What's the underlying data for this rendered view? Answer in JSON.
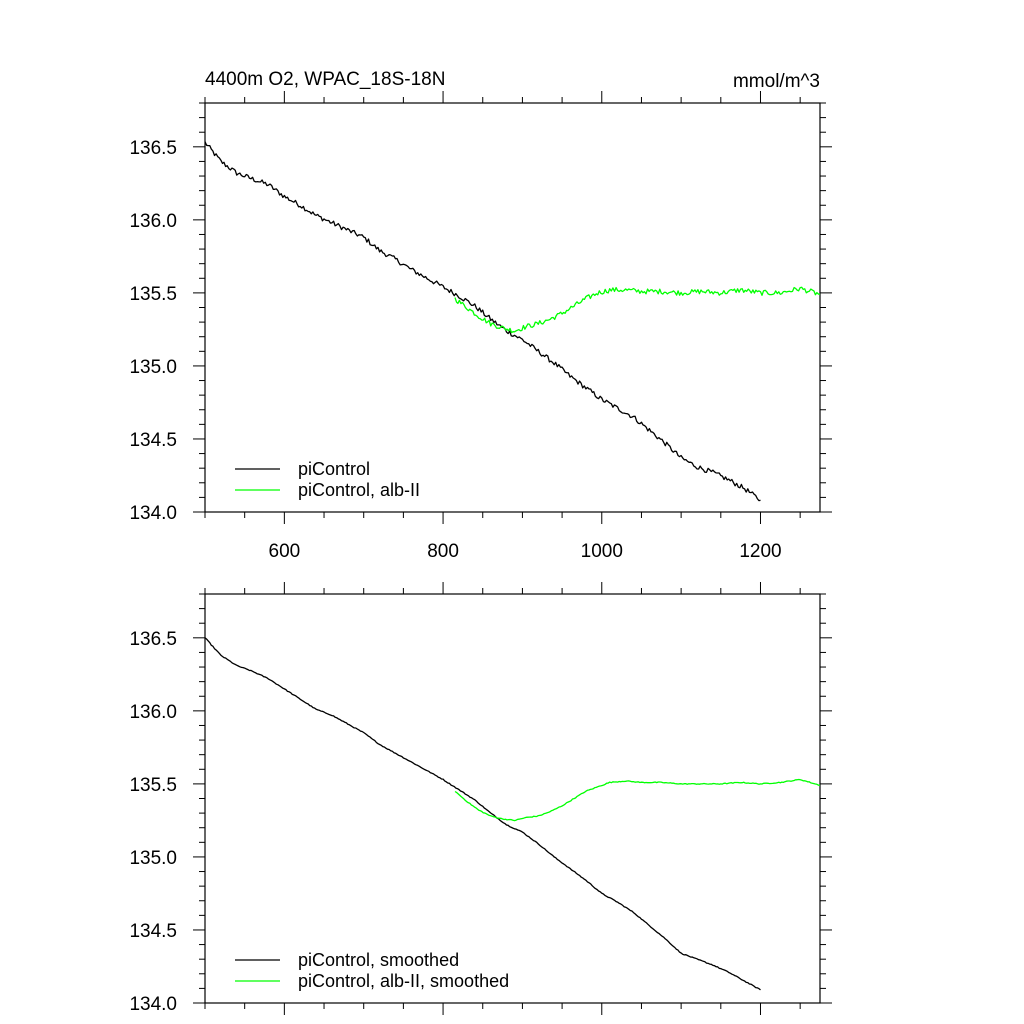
{
  "chart_data": [
    {
      "type": "line",
      "title": "4400m O2, WPAC_18S-18N",
      "units": "mmol/m^3",
      "xlim": [
        500,
        1275
      ],
      "ylim": [
        134.0,
        136.8
      ],
      "xticks": [
        600,
        800,
        1000,
        1200
      ],
      "xtick_labels": [
        "600",
        "800",
        "1000",
        "1200"
      ],
      "yticks": [
        134.0,
        134.5,
        135.0,
        135.5,
        136.0,
        136.5
      ],
      "ytick_labels": [
        "134.0",
        "134.5",
        "135.0",
        "135.5",
        "136.0",
        "136.5"
      ],
      "legend_position": "bottom-left",
      "grid": false,
      "series": [
        {
          "name": "piControl",
          "color": "#000000",
          "smoothed": false,
          "x": [
            500,
            520,
            540,
            560,
            580,
            600,
            620,
            640,
            660,
            680,
            700,
            720,
            740,
            760,
            780,
            800,
            820,
            840,
            860,
            880,
            900,
            920,
            940,
            960,
            980,
            1000,
            1020,
            1040,
            1060,
            1080,
            1100,
            1120,
            1140,
            1160,
            1180,
            1200
          ],
          "y": [
            136.53,
            136.4,
            136.32,
            136.28,
            136.24,
            136.16,
            136.1,
            136.03,
            135.98,
            135.93,
            135.88,
            135.79,
            135.73,
            135.66,
            135.6,
            135.54,
            135.48,
            135.41,
            135.32,
            135.24,
            135.18,
            135.1,
            135.02,
            134.93,
            134.85,
            134.77,
            134.71,
            134.65,
            134.56,
            134.47,
            134.37,
            134.31,
            134.27,
            134.22,
            134.16,
            134.08
          ]
        },
        {
          "name": "piControl, alb-II",
          "color": "#00ff00",
          "smoothed": false,
          "x": [
            815,
            830,
            845,
            860,
            875,
            890,
            905,
            920,
            935,
            950,
            965,
            980,
            995,
            1010,
            1030,
            1050,
            1075,
            1100,
            1125,
            1150,
            1175,
            1200,
            1225,
            1250,
            1275
          ],
          "y": [
            135.46,
            135.4,
            135.34,
            135.29,
            135.26,
            135.24,
            135.27,
            135.29,
            135.32,
            135.36,
            135.41,
            135.46,
            135.5,
            135.52,
            135.52,
            135.51,
            135.51,
            135.5,
            135.51,
            135.5,
            135.52,
            135.5,
            135.5,
            135.53,
            135.49
          ]
        }
      ]
    },
    {
      "type": "line",
      "title": "",
      "xlim": [
        500,
        1275
      ],
      "ylim": [
        134.0,
        136.8
      ],
      "xticks": [
        600,
        800,
        1000,
        1200
      ],
      "yticks": [
        134.0,
        134.5,
        135.0,
        135.5,
        136.0,
        136.5
      ],
      "ytick_labels": [
        "134.0",
        "134.5",
        "135.0",
        "135.5",
        "136.0",
        "136.5"
      ],
      "legend_position": "bottom-left",
      "grid": false,
      "series": [
        {
          "name": "piControl, smoothed",
          "color": "#000000",
          "smoothed": true,
          "x": [
            500,
            520,
            540,
            560,
            580,
            600,
            620,
            640,
            660,
            680,
            700,
            720,
            740,
            760,
            780,
            800,
            820,
            840,
            860,
            880,
            900,
            920,
            940,
            960,
            980,
            1000,
            1020,
            1040,
            1060,
            1080,
            1100,
            1120,
            1140,
            1160,
            1180,
            1200
          ],
          "y": [
            136.5,
            136.38,
            136.31,
            136.27,
            136.22,
            136.15,
            136.08,
            136.01,
            135.97,
            135.91,
            135.85,
            135.77,
            135.71,
            135.65,
            135.59,
            135.53,
            135.46,
            135.39,
            135.3,
            135.22,
            135.17,
            135.09,
            135.0,
            134.92,
            134.84,
            134.75,
            134.69,
            134.62,
            134.53,
            134.44,
            134.34,
            134.3,
            134.26,
            134.21,
            134.15,
            134.09
          ]
        },
        {
          "name": "piControl, alb-II, smoothed",
          "color": "#00ff00",
          "smoothed": true,
          "x": [
            815,
            830,
            845,
            860,
            875,
            890,
            905,
            920,
            935,
            950,
            965,
            980,
            995,
            1010,
            1030,
            1050,
            1075,
            1100,
            1125,
            1150,
            1175,
            1200,
            1225,
            1250,
            1275
          ],
          "y": [
            135.45,
            135.38,
            135.32,
            135.28,
            135.26,
            135.25,
            135.27,
            135.28,
            135.31,
            135.35,
            135.4,
            135.45,
            135.48,
            135.51,
            135.52,
            135.51,
            135.51,
            135.5,
            135.5,
            135.5,
            135.51,
            135.5,
            135.51,
            135.53,
            135.49
          ]
        }
      ]
    }
  ]
}
